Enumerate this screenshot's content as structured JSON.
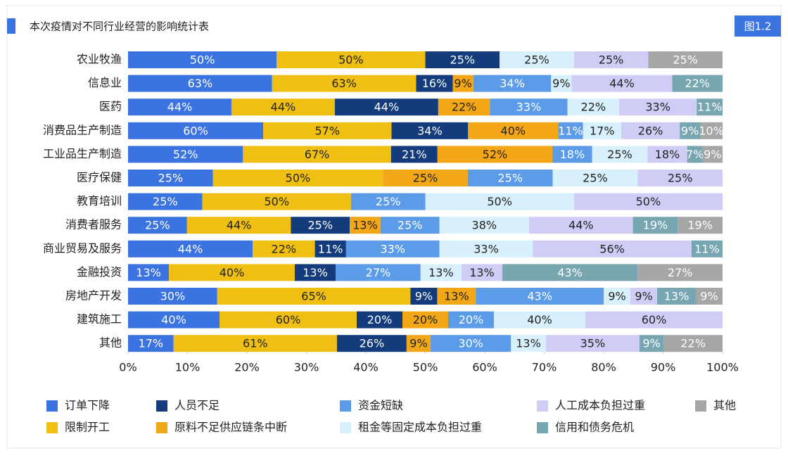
{
  "chart_data": {
    "type": "stacked_bar_horizontal_100",
    "title": "本次疫情对不同行业经营的影响统计表",
    "badge": "图1.2",
    "categories": [
      "农业牧渔",
      "信息业",
      "医药",
      "消费品生产制造",
      "工业品生产制造",
      "医疗保健",
      "教育培训",
      "消费者服务",
      "商业贸易及服务",
      "金融投资",
      "房地产开发",
      "建筑施工",
      "其他"
    ],
    "series": [
      {
        "name": "订单下降",
        "color": "#3b74e0",
        "values": [
          50,
          63,
          44,
          60,
          52,
          25,
          25,
          25,
          44,
          13,
          30,
          40,
          17
        ],
        "value_labels": [
          "50%",
          "63%",
          "44%",
          "60%",
          "52%",
          "25%",
          "25%",
          "25%",
          "44%",
          "13%",
          "30%",
          "40%",
          "17%"
        ]
      },
      {
        "name": "限制开工",
        "color": "#efc013",
        "values": [
          50,
          63,
          44,
          57,
          67,
          50,
          50,
          44,
          22,
          40,
          65,
          60,
          61
        ],
        "value_labels": [
          "50%",
          "63%",
          "44%",
          "57%",
          "67%",
          "50%",
          "50%",
          "44%",
          "22%",
          "40%",
          "65%",
          "60%",
          "61%"
        ]
      },
      {
        "name": "人员不足",
        "color": "#143c7c",
        "values": [
          25,
          16,
          44,
          34,
          21,
          null,
          null,
          25,
          11,
          13,
          9,
          20,
          26
        ],
        "value_labels": [
          "25%",
          "16%",
          "44%",
          "34%",
          "21%",
          null,
          null,
          "25%",
          "11%",
          "13%",
          "9%",
          "20%",
          "26%"
        ]
      },
      {
        "name": "原料不足供应链条中断",
        "color": "#f4a716",
        "values": [
          null,
          9,
          22,
          40,
          52,
          25,
          null,
          13,
          null,
          null,
          13,
          20,
          9
        ],
        "value_labels": [
          null,
          "9%",
          "22%",
          "40%",
          "52%",
          "25%",
          null,
          "13%",
          null,
          null,
          "13%",
          "20%",
          "9%"
        ]
      },
      {
        "name": "资金短缺",
        "color": "#5b9be8",
        "values": [
          null,
          34,
          33,
          11,
          18,
          25,
          25,
          25,
          33,
          27,
          43,
          20,
          30
        ],
        "value_labels": [
          null,
          "34%",
          "33%",
          "11%",
          "18%",
          "25%",
          "25%",
          "25%",
          "33%",
          "27%",
          "43%",
          "20%",
          "30%"
        ]
      },
      {
        "name": "租金等固定成本负担过重",
        "color": "#d7f0fb",
        "values": [
          25,
          9,
          22,
          17,
          25,
          25,
          50,
          38,
          33,
          13,
          9,
          40,
          13
        ],
        "value_labels": [
          "25%",
          "9%",
          "22%",
          "17%",
          "25%",
          "25%",
          "50%",
          "38%",
          "33%",
          "13%",
          "9%",
          "40%",
          "13%"
        ]
      },
      {
        "name": "人工成本负担过重",
        "color": "#cfcdf6",
        "values": [
          25,
          44,
          33,
          26,
          18,
          25,
          50,
          44,
          56,
          13,
          9,
          60,
          35
        ],
        "value_labels": [
          "25%",
          "44%",
          "33%",
          "26%",
          "18%",
          "25%",
          "50%",
          "44%",
          "56%",
          "13%",
          "9%",
          "60%",
          "35%"
        ]
      },
      {
        "name": "信用和债务危机",
        "color": "#77a5b0",
        "values": [
          null,
          22,
          11,
          9,
          7,
          null,
          null,
          19,
          11,
          43,
          13,
          null,
          9
        ],
        "value_labels": [
          null,
          "22%",
          "11%",
          "9%",
          "7%",
          null,
          null,
          "19%",
          "11%",
          "43%",
          "13%",
          null,
          "9%"
        ]
      },
      {
        "name": "其他",
        "color": "#a6a6a6",
        "values": [
          25,
          null,
          null,
          10,
          9,
          null,
          null,
          19,
          null,
          27,
          9,
          null,
          22
        ],
        "value_labels": [
          "25%",
          null,
          null,
          "10%",
          "9%",
          null,
          null,
          "19%",
          null,
          "27%",
          "9%",
          null,
          "22%"
        ]
      }
    ],
    "xlim": [
      0,
      100
    ],
    "xticks": [
      {
        "value": 0,
        "label": "0%"
      },
      {
        "value": 10,
        "label": "10%"
      },
      {
        "value": 20,
        "label": "20%"
      },
      {
        "value": 30,
        "label": "30%"
      },
      {
        "value": 40,
        "label": "40%"
      },
      {
        "value": 50,
        "label": "50%"
      },
      {
        "value": 60,
        "label": "60%"
      },
      {
        "value": 70,
        "label": "70%"
      },
      {
        "value": 80,
        "label": "80%"
      },
      {
        "value": 90,
        "label": "90%"
      },
      {
        "value": 100,
        "label": "100%"
      }
    ]
  }
}
